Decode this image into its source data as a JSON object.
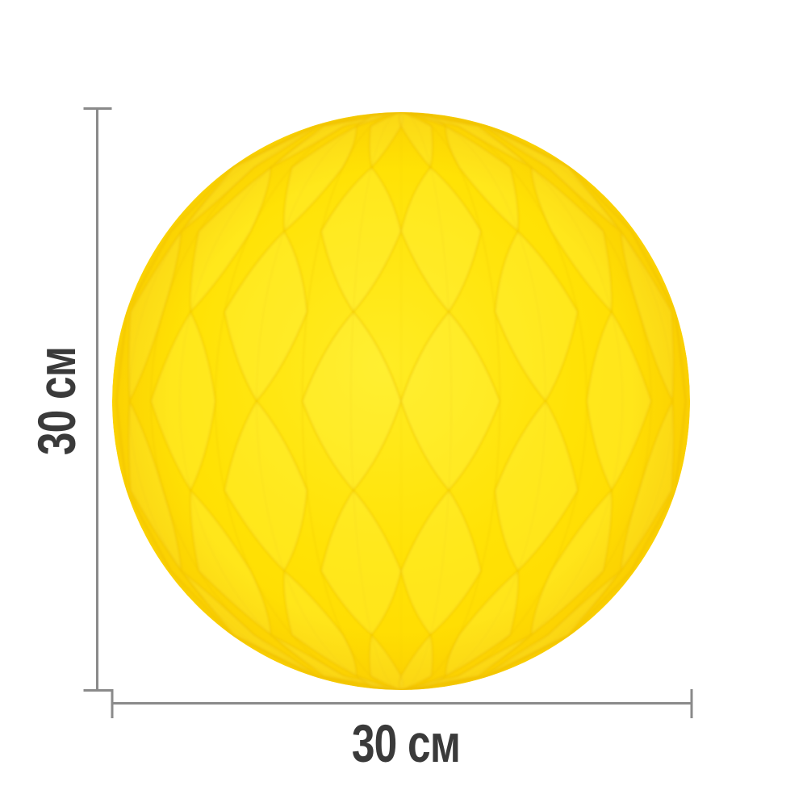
{
  "image": {
    "subject": "yellow-honeycomb-paper-ball",
    "background": "#FFFFFF"
  },
  "dimensions": {
    "height": {
      "label": "30 см"
    },
    "width": {
      "label": "30 см"
    },
    "line_color": "#8A8A8A",
    "label_color": "#3A3A3A"
  },
  "ball": {
    "colors": {
      "base_center": "#FFEC24",
      "base_mid": "#FFE205",
      "base_edge": "#FFD800",
      "highlight": "#FFF450",
      "crease": "#EDC000",
      "rim_shade": "#EFB400"
    }
  }
}
